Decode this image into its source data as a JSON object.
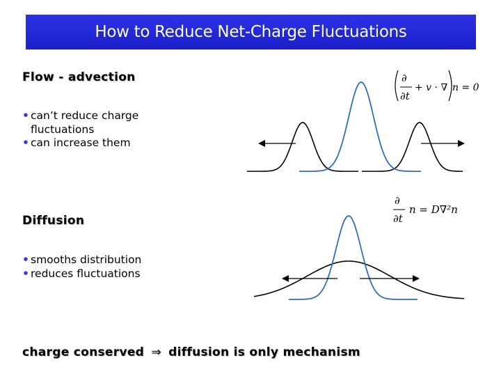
{
  "title": "How to Reduce Net-Charge Fluctuations",
  "sections": {
    "advection": {
      "heading": "Flow - advection",
      "bullets": [
        "can’t reduce charge fluctuations",
        "can increase them"
      ],
      "equation": {
        "part1": "+ v · ∇",
        "part2": "n = 0",
        "numerator": "∂",
        "denominator": "∂t"
      }
    },
    "diffusion": {
      "heading": "Diffusion",
      "bullets": [
        "smooths distribution",
        "reduces fluctuations"
      ],
      "equation": {
        "numerator": "∂",
        "denominator": "∂t",
        "rhs": "n = D∇²n"
      }
    }
  },
  "footer": {
    "text_left": "charge conserved",
    "arrow": "⇒",
    "text_right": "diffusion is only mechanism"
  },
  "colors": {
    "title_bg": "#2327d9",
    "curve_blue": "#2f6db8",
    "curve_black": "#000000",
    "bullet": "#2d33e6"
  }
}
